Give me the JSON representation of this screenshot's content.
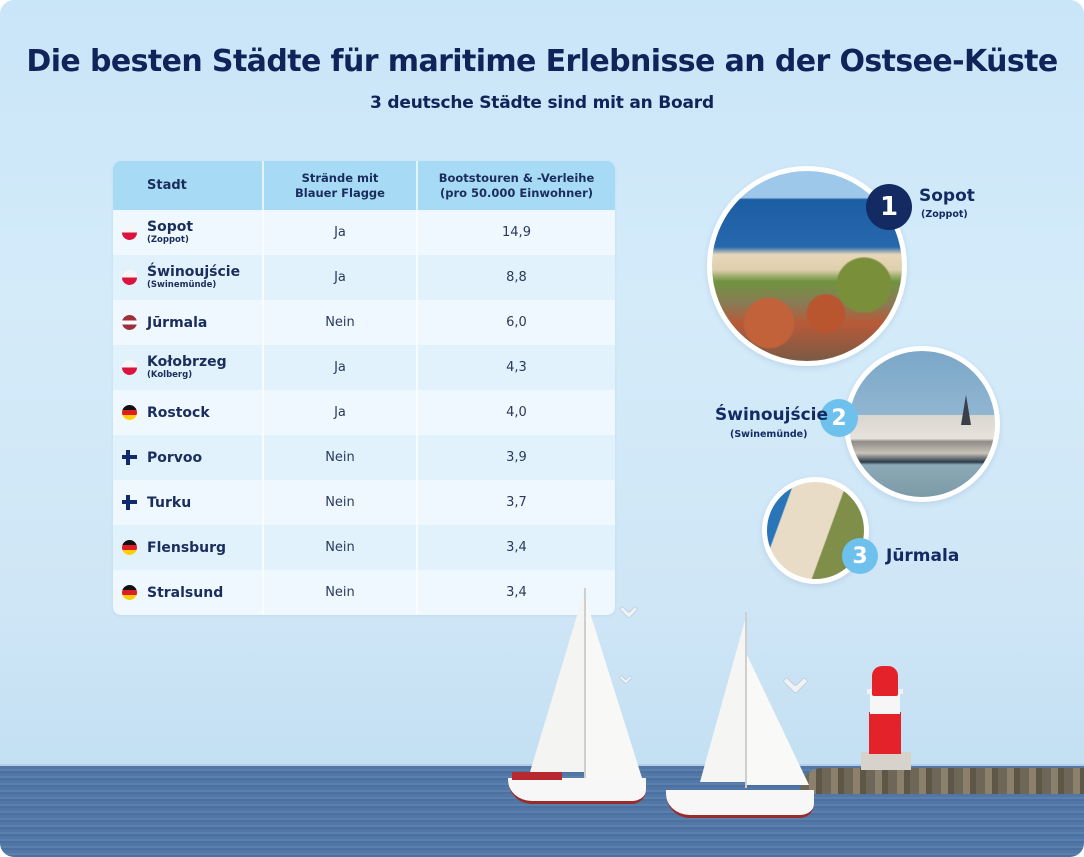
{
  "header": {
    "title": "Die besten Städte für maritime Erlebnisse an der Ostsee-Küste",
    "subtitle": "3 deutsche Städte sind mit an Board"
  },
  "table": {
    "columns": [
      "Stadt",
      "Strände mit\nBlauer Flagge",
      "Bootstouren & -Verleihe\n(pro 50.000 Einwohner)"
    ],
    "rows": [
      {
        "flag": "poland-flag-icon",
        "city": "Sopot",
        "alt": "(Zoppot)",
        "blue_flag": "Ja",
        "boats": "14,9"
      },
      {
        "flag": "poland-flag-icon",
        "city": "Świnoujście",
        "alt": "(Swinemünde)",
        "blue_flag": "Ja",
        "boats": "8,8"
      },
      {
        "flag": "latvia-flag-icon",
        "city": "Jūrmala",
        "alt": "",
        "blue_flag": "Nein",
        "boats": "6,0"
      },
      {
        "flag": "poland-flag-icon",
        "city": "Kołobrzeg",
        "alt": "(Kolberg)",
        "blue_flag": "Ja",
        "boats": "4,3"
      },
      {
        "flag": "germany-flag-icon",
        "city": "Rostock",
        "alt": "",
        "blue_flag": "Ja",
        "boats": "4,0"
      },
      {
        "flag": "finland-flag-icon",
        "city": "Porvoo",
        "alt": "",
        "blue_flag": "Nein",
        "boats": "3,9"
      },
      {
        "flag": "finland-flag-icon",
        "city": "Turku",
        "alt": "",
        "blue_flag": "Nein",
        "boats": "3,7"
      },
      {
        "flag": "germany-flag-icon",
        "city": "Flensburg",
        "alt": "",
        "blue_flag": "Nein",
        "boats": "3,4"
      },
      {
        "flag": "germany-flag-icon",
        "city": "Stralsund",
        "alt": "",
        "blue_flag": "Nein",
        "boats": "3,4"
      }
    ]
  },
  "podium": [
    {
      "rank": "1",
      "city": "Sopot",
      "alt": "(Zoppot)",
      "badge_color": "#142a63"
    },
    {
      "rank": "2",
      "city": "Świnoujście",
      "alt": "(Swinemünde)",
      "badge_color": "#6ec1ec"
    },
    {
      "rank": "3",
      "city": "Jūrmala",
      "alt": "",
      "badge_color": "#6ec1ec"
    }
  ],
  "colors": {
    "title": "#11245a",
    "header_row": "#a7dbf5",
    "row_light": "#eef8fe",
    "row_alt": "#e1f2fc",
    "background": "#cfe6f6"
  }
}
